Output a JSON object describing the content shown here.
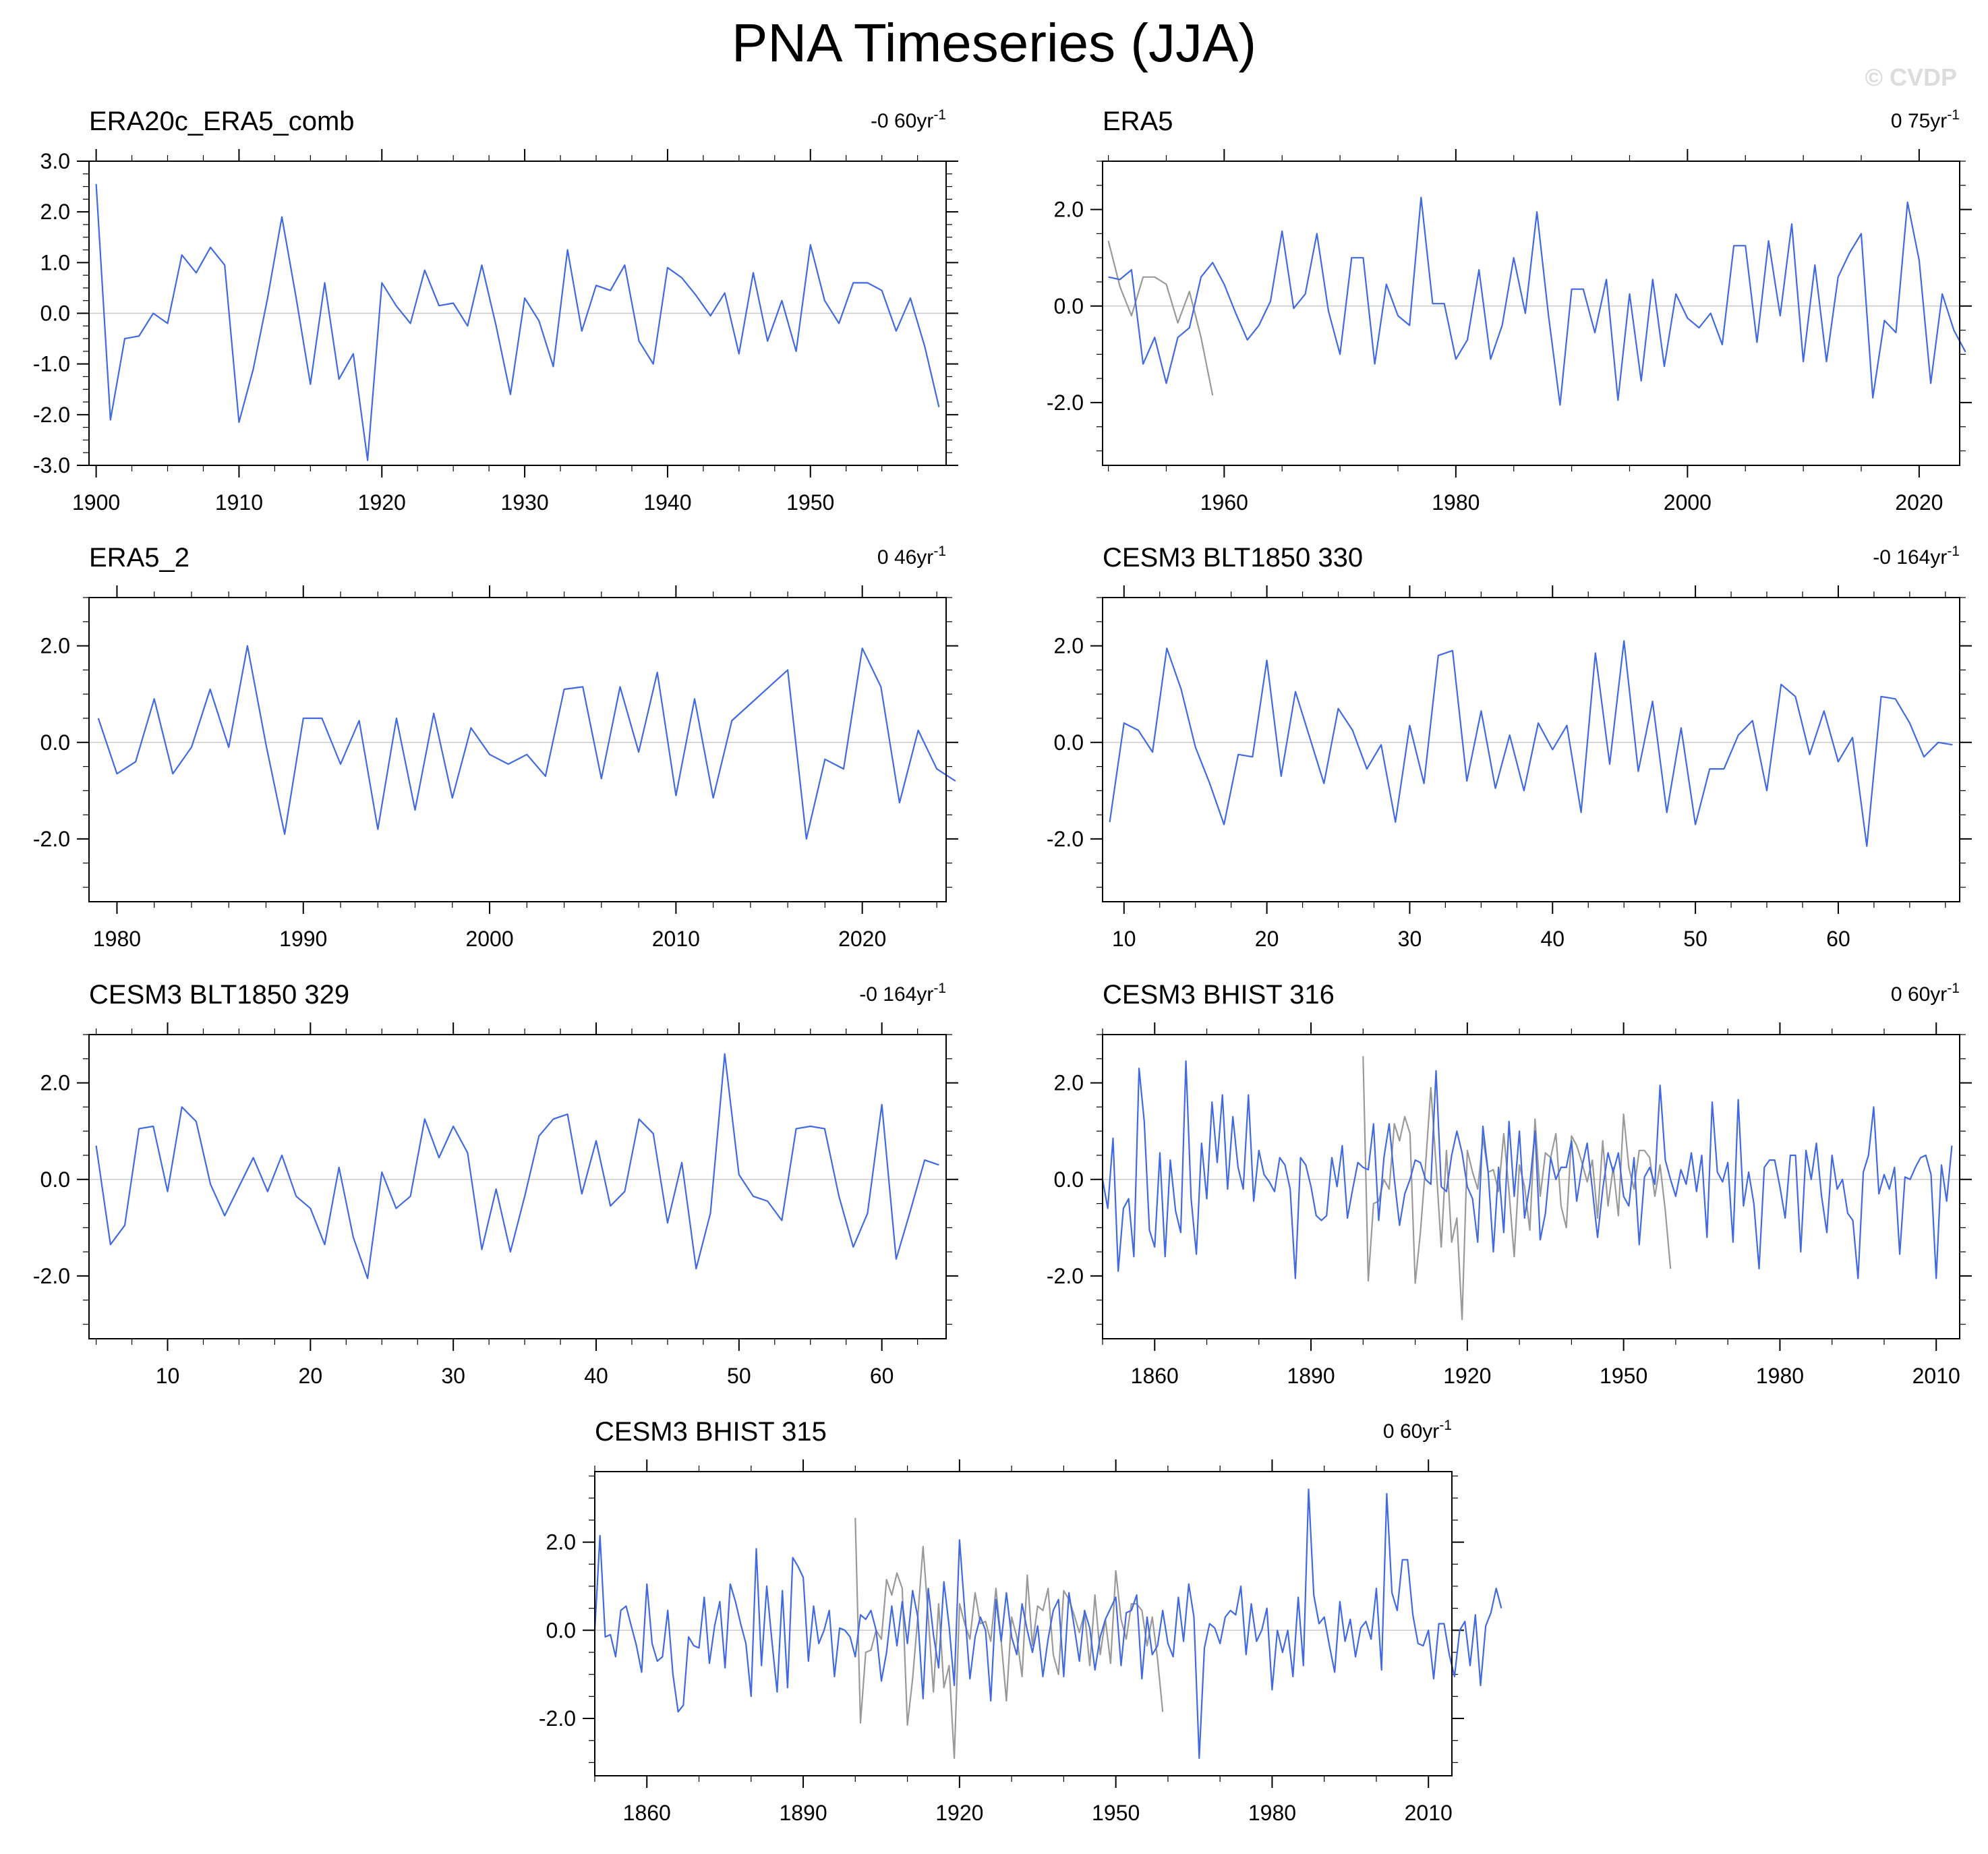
{
  "page": {
    "title": "PNA Timeseries (JJA)",
    "watermark": "© CVDP"
  },
  "colors": {
    "obs_line": "#4169e1",
    "ref_line": "#999999",
    "zero_line": "#cccccc",
    "axis": "#000000"
  },
  "chart_data": [
    {
      "type": "line",
      "title": "ERA20c_ERA5_comb",
      "trend_value": "-0 60yr",
      "trend_exp": "-1",
      "xlim": [
        1899.5,
        1959.5
      ],
      "ylim": [
        -3.0,
        3.0
      ],
      "yticks": [
        3.0,
        2.0,
        1.0,
        0.0,
        -1.0,
        -2.0,
        -3.0
      ],
      "ytick_labels": [
        "3.0",
        "2.0",
        "1.0",
        "0.0",
        "-1.0",
        "-2.0",
        "-3.0"
      ],
      "xticks": [
        1900,
        1910,
        1920,
        1930,
        1940,
        1950
      ],
      "xtick_labels": [
        "1900",
        "1910",
        "1920",
        "1930",
        "1940",
        "1950"
      ],
      "series": [
        {
          "name": "PNA",
          "color": "#4169e1",
          "x_start": 1900,
          "values": [
            2.55,
            -2.1,
            -0.5,
            -0.45,
            0.0,
            -0.2,
            1.15,
            0.8,
            1.3,
            0.95,
            -2.15,
            -1.1,
            0.3,
            1.9,
            0.3,
            -1.4,
            0.6,
            -1.3,
            -0.8,
            -2.9,
            0.6,
            0.15,
            -0.2,
            0.85,
            0.15,
            0.2,
            -0.25,
            0.95,
            -0.25,
            -1.6,
            0.3,
            -0.15,
            -1.05,
            1.25,
            -0.35,
            0.55,
            0.45,
            0.95,
            -0.55,
            -1.0,
            0.9,
            0.7,
            0.35,
            -0.05,
            0.4,
            -0.8,
            0.8,
            -0.55,
            0.25,
            -0.75,
            1.35,
            0.25,
            -0.2,
            0.6,
            0.6,
            0.45,
            -0.35,
            0.3,
            -0.65,
            -1.85
          ]
        }
      ]
    },
    {
      "type": "line",
      "title": "ERA5",
      "trend_value": "0 75yr",
      "trend_exp": "-1",
      "xlim": [
        1949.5,
        2023.5
      ],
      "ylim": [
        -3.3,
        3.0
      ],
      "yticks": [
        2.0,
        0.0,
        -2.0
      ],
      "ytick_labels": [
        "2.0",
        "0.0",
        "-2.0"
      ],
      "xticks": [
        1960,
        1980,
        2000,
        2020
      ],
      "xtick_labels": [
        "1960",
        "1980",
        "2000",
        "2020"
      ],
      "series": [
        {
          "name": "ERA5",
          "color": "#4169e1",
          "x_start": 1950,
          "values": [
            0.6,
            0.55,
            0.75,
            -1.2,
            -0.65,
            -1.6,
            -0.65,
            -0.45,
            0.6,
            0.9,
            0.45,
            -0.15,
            -0.7,
            -0.4,
            0.1,
            1.55,
            -0.05,
            0.25,
            1.5,
            -0.1,
            -1.0,
            1.0,
            1.0,
            -1.2,
            0.45,
            -0.2,
            -0.4,
            2.25,
            0.05,
            0.05,
            -1.1,
            -0.7,
            0.75,
            -1.1,
            -0.4,
            1.0,
            -0.15,
            1.95,
            -0.2,
            -2.05,
            0.35,
            0.35,
            -0.55,
            0.55,
            -1.95,
            0.25,
            -1.55,
            0.55,
            -1.25,
            0.25,
            -0.25,
            -0.45,
            -0.15,
            -0.8,
            1.25,
            1.25,
            -0.75,
            1.35,
            -0.2,
            1.7,
            -1.15,
            0.85,
            -1.15,
            0.6,
            1.1,
            1.5,
            -1.9,
            -0.3,
            -0.55,
            2.15,
            0.95,
            -1.6,
            0.25,
            -0.5,
            -0.95
          ]
        },
        {
          "name": "ERA20c_ERA5_comb",
          "color": "#999999",
          "x_start": 1950,
          "values": [
            1.35,
            0.4,
            -0.2,
            0.6,
            0.6,
            0.45,
            -0.35,
            0.3,
            -0.65,
            -1.85
          ]
        }
      ]
    },
    {
      "type": "line",
      "title": "ERA5_2",
      "trend_value": "0 46yr",
      "trend_exp": "-1",
      "xlim": [
        1978.5,
        2024.5
      ],
      "ylim": [
        -3.3,
        3.0
      ],
      "yticks": [
        2.0,
        0.0,
        -2.0
      ],
      "ytick_labels": [
        "2.0",
        "0.0",
        "-2.0"
      ],
      "xticks": [
        1980,
        1990,
        2000,
        2010,
        2020
      ],
      "xtick_labels": [
        "1980",
        "1990",
        "2000",
        "2010",
        "2020"
      ],
      "series": [
        {
          "name": "ERA5_2",
          "color": "#4169e1",
          "x_start": 1979,
          "values": [
            0.5,
            -0.65,
            -0.4,
            0.9,
            -0.65,
            -0.1,
            1.1,
            -0.1,
            2.0,
            -0.05,
            -1.9,
            0.5,
            0.5,
            -0.45,
            0.45,
            -1.8,
            0.5,
            -1.4,
            0.6,
            -1.15,
            0.3,
            -0.25,
            -0.45,
            -0.25,
            -0.7,
            1.1,
            1.15,
            -0.75,
            1.15,
            -0.2,
            1.45,
            -1.1,
            0.9,
            -1.15,
            0.45,
            0.8,
            1.15,
            1.5,
            -2.0,
            -0.35,
            -0.55,
            1.95,
            1.15,
            -1.25,
            0.25,
            -0.55,
            -0.8
          ]
        }
      ]
    },
    {
      "type": "line",
      "title": "CESM3 BLT1850 330",
      "trend_value": "-0 164yr",
      "trend_exp": "-1",
      "xlim": [
        8.5,
        68.5
      ],
      "ylim": [
        -3.3,
        3.0
      ],
      "yticks": [
        2.0,
        0.0,
        -2.0
      ],
      "ytick_labels": [
        "2.0",
        "0.0",
        "-2.0"
      ],
      "xticks": [
        10,
        20,
        30,
        40,
        50,
        60
      ],
      "xtick_labels": [
        "10",
        "20",
        "30",
        "40",
        "50",
        "60"
      ],
      "series": [
        {
          "name": "BLT1850 330",
          "color": "#4169e1",
          "x_start": 9,
          "values": [
            -1.65,
            0.4,
            0.25,
            -0.2,
            1.95,
            1.1,
            -0.1,
            -0.85,
            -1.7,
            -0.25,
            -0.3,
            1.7,
            -0.7,
            1.05,
            0.1,
            -0.85,
            0.7,
            0.25,
            -0.55,
            -0.05,
            -1.65,
            0.35,
            -0.85,
            1.8,
            1.9,
            -0.8,
            0.65,
            -0.95,
            0.15,
            -1.0,
            0.4,
            -0.15,
            0.35,
            -1.45,
            1.85,
            -0.45,
            2.1,
            -0.6,
            0.85,
            -1.45,
            0.3,
            -1.7,
            -0.55,
            -0.55,
            0.15,
            0.45,
            -1.0,
            1.2,
            0.95,
            -0.25,
            0.65,
            -0.4,
            0.1,
            -2.15,
            0.95,
            0.9,
            0.4,
            -0.3,
            0.0,
            -0.05
          ]
        }
      ]
    },
    {
      "type": "line",
      "title": "CESM3 BLT1850 329",
      "trend_value": "-0 164yr",
      "trend_exp": "-1",
      "xlim": [
        4.5,
        64.5
      ],
      "ylim": [
        -3.3,
        3.0
      ],
      "yticks": [
        2.0,
        0.0,
        -2.0
      ],
      "ytick_labels": [
        "2.0",
        "0.0",
        "-2.0"
      ],
      "xticks": [
        10,
        20,
        30,
        40,
        50,
        60
      ],
      "xtick_labels": [
        "10",
        "20",
        "30",
        "40",
        "50",
        "60"
      ],
      "series": [
        {
          "name": "BLT1850 329",
          "color": "#4169e1",
          "x_start": 5,
          "values": [
            0.7,
            -1.35,
            -0.95,
            1.05,
            1.1,
            -0.25,
            1.5,
            1.2,
            -0.1,
            -0.75,
            -0.15,
            0.45,
            -0.25,
            0.5,
            -0.35,
            -0.6,
            -1.35,
            0.25,
            -1.2,
            -2.05,
            0.15,
            -0.6,
            -0.35,
            1.25,
            0.45,
            1.1,
            0.55,
            -1.45,
            -0.2,
            -1.5,
            -0.35,
            0.9,
            1.25,
            1.35,
            -0.3,
            0.8,
            -0.55,
            -0.25,
            1.25,
            0.95,
            -0.9,
            0.35,
            -1.85,
            -0.7,
            2.6,
            0.1,
            -0.35,
            -0.45,
            -0.85,
            1.05,
            1.1,
            1.05,
            -0.35,
            -1.4,
            -0.7,
            1.55,
            -1.65,
            -0.65,
            0.4,
            0.3
          ]
        }
      ]
    },
    {
      "type": "line",
      "title": "CESM3 BHIST 316",
      "trend_value": "0 60yr",
      "trend_exp": "-1",
      "xlim": [
        1850,
        2014.5
      ],
      "ylim": [
        -3.3,
        3.0
      ],
      "yticks": [
        2.0,
        0.0,
        -2.0
      ],
      "ytick_labels": [
        "2.0",
        "0.0",
        "-2.0"
      ],
      "xticks": [
        1860,
        1890,
        1920,
        1950,
        1980,
        2010
      ],
      "xtick_labels": [
        "1860",
        "1890",
        "1920",
        "1950",
        "1980",
        "2010"
      ],
      "series": [
        {
          "name": "BHIST 316",
          "color": "#4169e1",
          "x_start": 1850,
          "values": [
            0.0,
            -0.6,
            0.85,
            -1.9,
            -0.6,
            -0.4,
            -1.6,
            2.3,
            1.2,
            -1.05,
            -1.4,
            0.55,
            -1.6,
            0.4,
            -0.65,
            -1.1,
            2.45,
            -0.4,
            -1.55,
            0.75,
            -0.4,
            1.6,
            0.35,
            1.75,
            -0.2,
            1.3,
            0.25,
            -0.2,
            1.75,
            -0.45,
            0.6,
            0.1,
            -0.05,
            -0.25,
            0.45,
            0.3,
            -0.2,
            -2.05,
            0.45,
            0.3,
            -0.15,
            -0.75,
            -0.85,
            -0.75,
            0.45,
            -0.15,
            0.7,
            -0.8,
            -0.2,
            0.35,
            0.25,
            0.2,
            1.15,
            -0.85,
            0.45,
            1.15,
            0.0,
            -0.95,
            -0.3,
            0.0,
            0.4,
            0.35,
            0.0,
            -0.1,
            2.25,
            -0.15,
            -0.25,
            0.5,
            1.0,
            0.55,
            -0.15,
            -0.4,
            -1.3,
            1.1,
            0.15,
            -1.5,
            0.25,
            -1.1,
            1.2,
            -0.35,
            1.0,
            -0.8,
            -0.1,
            1.0,
            -1.25,
            -0.7,
            0.45,
            0.0,
            0.25,
            0.25,
            0.8,
            -0.45,
            0.25,
            0.75,
            -0.2,
            -1.2,
            -0.2,
            0.55,
            0.15,
            0.55,
            -0.35,
            -0.55,
            0.45,
            -1.35,
            0.05,
            0.25,
            -0.1,
            1.95,
            0.4,
            0.0,
            -0.35,
            0.2,
            -0.1,
            0.55,
            -0.25,
            0.5,
            -1.2,
            1.6,
            0.15,
            -0.05,
            0.35,
            -1.3,
            1.65,
            -0.55,
            0.15,
            -0.5,
            -1.85,
            0.25,
            0.4,
            0.4,
            -0.15,
            -0.8,
            0.5,
            0.5,
            -1.5,
            0.6,
            0.0,
            0.75,
            -0.35,
            -1.1,
            0.5,
            -0.2,
            0.0,
            -0.7,
            -0.85,
            -2.05,
            0.15,
            0.5,
            1.5,
            -0.3,
            0.1,
            -0.2,
            0.25,
            -1.55,
            0.05,
            0.0,
            0.25,
            0.45,
            0.5,
            0.1,
            -2.05,
            0.3,
            -0.45,
            0.7
          ]
        },
        {
          "name": "ERA20c_ERA5_comb",
          "color": "#999999",
          "x_start": 1900,
          "values": [
            2.55,
            -2.1,
            -0.5,
            -0.45,
            0.0,
            -0.2,
            1.15,
            0.8,
            1.3,
            0.95,
            -2.15,
            -1.1,
            0.3,
            1.9,
            0.3,
            -1.4,
            0.6,
            -1.3,
            -0.8,
            -2.9,
            0.6,
            0.15,
            -0.2,
            0.85,
            0.15,
            0.2,
            -0.25,
            0.95,
            -0.25,
            -1.6,
            0.3,
            -0.15,
            -1.05,
            1.25,
            -0.35,
            0.55,
            0.45,
            0.95,
            -0.55,
            -1.0,
            0.9,
            0.7,
            0.35,
            -0.05,
            0.4,
            -0.8,
            0.8,
            -0.55,
            0.25,
            -0.75,
            1.35,
            0.25,
            -0.2,
            0.6,
            0.6,
            0.45,
            -0.35,
            0.3,
            -0.65,
            -1.85
          ]
        }
      ]
    },
    {
      "type": "line",
      "title": "CESM3 BHIST 315",
      "trend_value": "0 60yr",
      "trend_exp": "-1",
      "xlim": [
        1850,
        2014.5
      ],
      "ylim": [
        -3.3,
        3.6
      ],
      "yticks": [
        2.0,
        0.0,
        -2.0
      ],
      "ytick_labels": [
        "2.0",
        "0.0",
        "-2.0"
      ],
      "xticks": [
        1860,
        1890,
        1920,
        1950,
        1980,
        2010
      ],
      "xtick_labels": [
        "1860",
        "1890",
        "1920",
        "1950",
        "1980",
        "2010"
      ],
      "series": [
        {
          "name": "BHIST 315",
          "color": "#4169e1",
          "x_start": 1850,
          "values": [
            0.0,
            2.15,
            -0.15,
            -0.1,
            -0.6,
            0.45,
            0.55,
            0.1,
            -0.35,
            -0.95,
            1.05,
            -0.3,
            -0.7,
            -0.6,
            0.45,
            -1.0,
            -1.85,
            -1.7,
            -0.15,
            -0.35,
            -0.4,
            0.75,
            -0.75,
            0.1,
            0.65,
            -0.85,
            1.05,
            0.65,
            0.15,
            -0.3,
            -1.5,
            1.85,
            -0.8,
            1.0,
            -0.25,
            -1.4,
            0.9,
            -1.3,
            1.65,
            1.45,
            1.2,
            -0.7,
            0.55,
            -0.3,
            0.0,
            0.45,
            -1.05,
            0.05,
            0.0,
            -0.15,
            -0.6,
            0.35,
            0.25,
            0.45,
            0.0,
            -1.15,
            -0.5,
            0.55,
            -0.35,
            0.65,
            -0.3,
            0.9,
            0.3,
            -1.55,
            0.95,
            -0.1,
            -0.85,
            1.1,
            0.1,
            -1.25,
            2.05,
            0.45,
            -1.1,
            -0.15,
            0.3,
            0.0,
            -1.6,
            0.7,
            -0.25,
            0.85,
            -0.15,
            -0.55,
            0.6,
            0.0,
            -0.5,
            0.1,
            -1.05,
            -0.2,
            0.45,
            0.7,
            -1.05,
            0.85,
            0.1,
            -0.7,
            0.45,
            0.05,
            -0.9,
            -0.15,
            0.25,
            0.5,
            0.75,
            -0.8,
            0.4,
            0.45,
            0.8,
            -1.1,
            0.3,
            -0.55,
            -0.35,
            0.45,
            -0.3,
            -0.6,
            0.75,
            -0.25,
            1.05,
            0.3,
            -2.9,
            -0.4,
            0.15,
            0.05,
            -0.3,
            0.3,
            0.45,
            0.35,
            1.0,
            -0.55,
            0.6,
            -0.25,
            0.0,
            0.5,
            -1.35,
            0.0,
            -0.5,
            0.0,
            -1.05,
            0.75,
            -0.8,
            3.2,
            0.8,
            0.15,
            0.3,
            -0.35,
            -0.95,
            0.65,
            -0.25,
            0.25,
            -0.6,
            0.05,
            0.2,
            -0.2,
            0.95,
            -0.9,
            3.1,
            0.85,
            0.45,
            1.6,
            1.6,
            0.35,
            -0.3,
            -0.35,
            0.0,
            -1.1,
            0.15,
            0.15,
            -0.55,
            -1.05,
            0.0,
            0.2,
            -0.8,
            0.35,
            -1.25,
            0.1,
            0.4,
            0.95,
            0.5
          ]
        },
        {
          "name": "ERA20c_ERA5_comb",
          "color": "#999999",
          "x_start": 1900,
          "values": [
            2.55,
            -2.1,
            -0.5,
            -0.45,
            0.0,
            -0.2,
            1.15,
            0.8,
            1.3,
            0.95,
            -2.15,
            -1.1,
            0.3,
            1.9,
            0.3,
            -1.4,
            0.6,
            -1.3,
            -0.8,
            -2.9,
            0.6,
            0.15,
            -0.2,
            0.85,
            0.15,
            0.2,
            -0.25,
            0.95,
            -0.25,
            -1.6,
            0.3,
            -0.15,
            -1.05,
            1.25,
            -0.35,
            0.55,
            0.45,
            0.95,
            -0.55,
            -1.0,
            0.9,
            0.7,
            0.35,
            -0.05,
            0.4,
            -0.8,
            0.8,
            -0.55,
            0.25,
            -0.75,
            1.35,
            0.25,
            -0.2,
            0.6,
            0.6,
            0.45,
            -0.35,
            0.3,
            -0.65,
            -1.85
          ]
        }
      ]
    }
  ]
}
